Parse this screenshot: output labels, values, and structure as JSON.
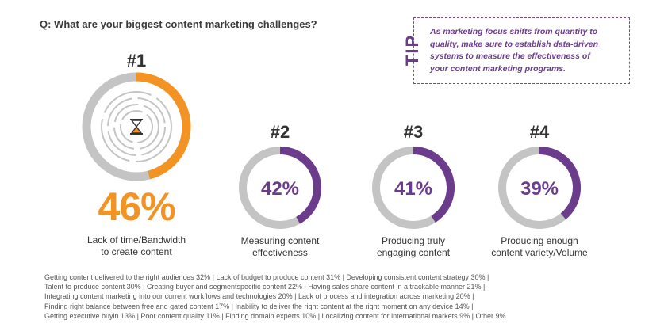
{
  "question": "Q: What are your biggest content marketing challenges?",
  "tip": {
    "label": "TIP",
    "lines": [
      "As marketing focus shifts from quantity to",
      "quality, make sure to establish data-driven",
      "systems to measure the effectiveness of",
      "your content marketing programs."
    ]
  },
  "colors": {
    "orange": "#f39323",
    "purple": "#6b3b8c",
    "track": "#c4c4c4"
  },
  "chart_data": {
    "type": "pie",
    "title": "Q: What are your biggest content marketing challenges?",
    "categories": [
      "Lack of time/Bandwidth to create content",
      "Measuring content effectiveness",
      "Producing truly engaging content",
      "Producing enough content variety/Volume"
    ],
    "values": [
      46,
      42,
      41,
      39
    ],
    "items": [
      {
        "rank": "#1",
        "value": 46,
        "pct": "46%",
        "label1": "Lack of time/Bandwidth",
        "label2": "to create content"
      },
      {
        "rank": "#2",
        "value": 42,
        "pct": "42%",
        "label1": "Measuring content",
        "label2": "effectiveness"
      },
      {
        "rank": "#3",
        "value": 41,
        "pct": "41%",
        "label1": "Producing truly",
        "label2": "engaging content"
      },
      {
        "rank": "#4",
        "value": 39,
        "pct": "39%",
        "label1": "Producing enough",
        "label2": "content variety/Volume"
      }
    ]
  },
  "footer_lines": [
    "Getting content delivered to the right audiences 32%  |  Lack of budget to produce content 31%  |  Developing consistent content strategy 30%  |",
    "Talent to produce content 30%  |  Creating buyer and segmentspecific content 22%  |  Having sales share content in a trackable manner 21%  |",
    "Integrating content marketing into our current workflows and technologies 20%  |  Lack of process and integration across marketing 20%  |",
    "Finding right balance between free and gated content 17%  |  Inability to deliver the right content at the right moment on any device 14%  |",
    "Getting executive buyin 13%  |  Poor content quality 11%  |  Finding domain experts 10%  |  Localizing content for international markets 9%  |  Other 9%"
  ]
}
